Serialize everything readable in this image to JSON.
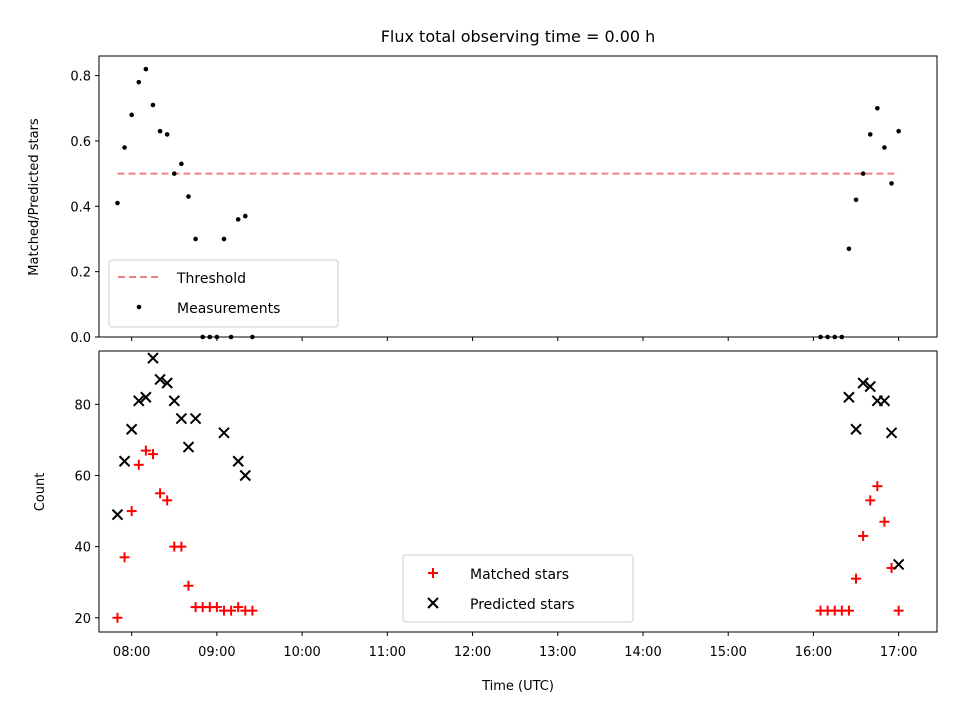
{
  "chart_data": [
    {
      "type": "scatter",
      "title": "Flux total observing time = 0.00 h",
      "xlabel": "",
      "ylabel": "Matched/Predicted stars",
      "ylim": [
        0,
        0.86
      ],
      "xlim": [
        "07:37",
        "17:27"
      ],
      "y_ticks": [
        "0.0",
        "0.2",
        "0.4",
        "0.6",
        "0.8"
      ],
      "x_ticks_labeled": false,
      "legend_position": "lower-left",
      "threshold": {
        "name": "Threshold",
        "value": 0.5,
        "x_range": [
          "07:50",
          "17:00"
        ],
        "color": "#f08080"
      },
      "series": [
        {
          "name": "Measurements",
          "marker": "dot",
          "color": "#000000",
          "points": [
            [
              "07:50",
              0.41
            ],
            [
              "07:55",
              0.58
            ],
            [
              "08:00",
              0.68
            ],
            [
              "08:05",
              0.78
            ],
            [
              "08:10",
              0.82
            ],
            [
              "08:15",
              0.71
            ],
            [
              "08:20",
              0.63
            ],
            [
              "08:25",
              0.62
            ],
            [
              "08:30",
              0.5
            ],
            [
              "08:35",
              0.53
            ],
            [
              "08:40",
              0.43
            ],
            [
              "08:45",
              0.3
            ],
            [
              "08:50",
              0.0
            ],
            [
              "08:55",
              0.0
            ],
            [
              "09:00",
              0.0
            ],
            [
              "09:05",
              0.3
            ],
            [
              "09:10",
              0.0
            ],
            [
              "09:15",
              0.36
            ],
            [
              "09:20",
              0.37
            ],
            [
              "09:25",
              0.0
            ],
            [
              "16:05",
              0.0
            ],
            [
              "16:10",
              0.0
            ],
            [
              "16:15",
              0.0
            ],
            [
              "16:20",
              0.0
            ],
            [
              "16:25",
              0.27
            ],
            [
              "16:30",
              0.42
            ],
            [
              "16:35",
              0.5
            ],
            [
              "16:40",
              0.62
            ],
            [
              "16:45",
              0.7
            ],
            [
              "16:50",
              0.58
            ],
            [
              "16:55",
              0.47
            ],
            [
              "17:00",
              0.63
            ]
          ]
        }
      ]
    },
    {
      "type": "scatter",
      "title": "",
      "xlabel": "Time (UTC)",
      "ylabel": "Count",
      "ylim": [
        16,
        95
      ],
      "xlim": [
        "07:37",
        "17:27"
      ],
      "y_ticks": [
        "20",
        "40",
        "60",
        "80"
      ],
      "x_ticks": [
        "08:00",
        "09:00",
        "10:00",
        "11:00",
        "12:00",
        "13:00",
        "14:00",
        "15:00",
        "16:00",
        "17:00"
      ],
      "legend_position": "lower-center",
      "series": [
        {
          "name": "Matched stars",
          "marker": "plus",
          "color": "#ff0000",
          "points": [
            [
              "07:50",
              20
            ],
            [
              "07:55",
              37
            ],
            [
              "08:00",
              50
            ],
            [
              "08:05",
              63
            ],
            [
              "08:10",
              67
            ],
            [
              "08:15",
              66
            ],
            [
              "08:20",
              55
            ],
            [
              "08:25",
              53
            ],
            [
              "08:30",
              40
            ],
            [
              "08:35",
              40
            ],
            [
              "08:40",
              29
            ],
            [
              "08:45",
              23
            ],
            [
              "08:50",
              23
            ],
            [
              "08:55",
              23
            ],
            [
              "09:00",
              23
            ],
            [
              "09:05",
              22
            ],
            [
              "09:10",
              22
            ],
            [
              "09:15",
              23
            ],
            [
              "09:20",
              22
            ],
            [
              "09:25",
              22
            ],
            [
              "16:05",
              22
            ],
            [
              "16:10",
              22
            ],
            [
              "16:15",
              22
            ],
            [
              "16:20",
              22
            ],
            [
              "16:25",
              22
            ],
            [
              "16:30",
              31
            ],
            [
              "16:35",
              43
            ],
            [
              "16:40",
              53
            ],
            [
              "16:45",
              57
            ],
            [
              "16:50",
              47
            ],
            [
              "16:55",
              34
            ],
            [
              "17:00",
              22
            ]
          ]
        },
        {
          "name": "Predicted stars",
          "marker": "x",
          "color": "#000000",
          "points": [
            [
              "07:50",
              49
            ],
            [
              "07:55",
              64
            ],
            [
              "08:00",
              73
            ],
            [
              "08:05",
              81
            ],
            [
              "08:10",
              82
            ],
            [
              "08:15",
              93
            ],
            [
              "08:20",
              87
            ],
            [
              "08:25",
              86
            ],
            [
              "08:30",
              81
            ],
            [
              "08:35",
              76
            ],
            [
              "08:40",
              68
            ],
            [
              "08:45",
              76
            ],
            [
              "09:05",
              72
            ],
            [
              "09:15",
              64
            ],
            [
              "09:20",
              60
            ],
            [
              "16:25",
              82
            ],
            [
              "16:30",
              73
            ],
            [
              "16:35",
              86
            ],
            [
              "16:40",
              85
            ],
            [
              "16:45",
              81
            ],
            [
              "16:50",
              81
            ],
            [
              "16:55",
              72
            ],
            [
              "17:00",
              35
            ]
          ]
        }
      ]
    }
  ]
}
